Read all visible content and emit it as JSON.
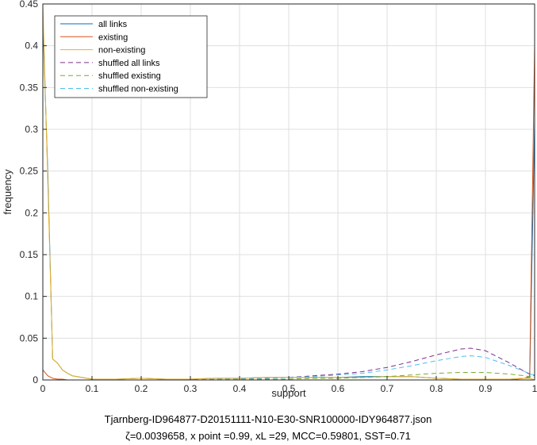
{
  "chart_data": {
    "type": "line",
    "xlabel": "support",
    "ylabel": "frequency",
    "caption_line1": "Tjarnberg-ID964877-D20151111-N10-E30-SNR100000-IDY964877.json",
    "caption_line2": "ζ=0.0039658, x point =0.99, xL =29, MCC=0.59801, SST=0.71",
    "xlim": [
      0,
      1
    ],
    "ylim": [
      0,
      0.45
    ],
    "xticks": [
      0,
      0.1,
      0.2,
      0.3,
      0.4,
      0.5,
      0.6,
      0.7,
      0.8,
      0.9,
      1
    ],
    "xtick_labels": [
      "0",
      "0.1",
      "0.2",
      "0.3",
      "0.4",
      "0.5",
      "0.6",
      "0.7",
      "0.8",
      "0.9",
      "1"
    ],
    "yticks": [
      0,
      0.05,
      0.1,
      0.15,
      0.2,
      0.25,
      0.3,
      0.35,
      0.4,
      0.45
    ],
    "ytick_labels": [
      "0",
      "0.05",
      "0.1",
      "0.15",
      "0.2",
      "0.25",
      "0.3",
      "0.35",
      "0.4",
      "0.45"
    ],
    "grid": true,
    "legend_position": "top-left",
    "x": [
      0,
      0.01,
      0.02,
      0.03,
      0.04,
      0.05,
      0.06,
      0.08,
      0.1,
      0.15,
      0.2,
      0.25,
      0.3,
      0.35,
      0.4,
      0.45,
      0.5,
      0.55,
      0.6,
      0.65,
      0.7,
      0.75,
      0.8,
      0.85,
      0.87,
      0.9,
      0.95,
      0.98,
      0.99,
      1
    ],
    "series": [
      {
        "name": "all links",
        "color": "#0072BD",
        "dash": "solid",
        "values": [
          0.43,
          0.25,
          0.025,
          0.02,
          0.012,
          0.008,
          0.005,
          0.003,
          0.001,
          0.001,
          0.002,
          0.001,
          0.001,
          0.002,
          0.002,
          0.003,
          0.003,
          0.003,
          0.003,
          0.004,
          0.004,
          0.004,
          0.002,
          0.001,
          0.001,
          0.001,
          0.001,
          0.002,
          0.003,
          0.31
        ]
      },
      {
        "name": "existing",
        "color": "#D95319",
        "dash": "solid",
        "values": [
          0.012,
          0.005,
          0.002,
          0.001,
          0.001,
          0,
          0,
          0,
          0,
          0,
          0,
          0,
          0,
          0,
          0,
          0,
          0,
          0,
          0,
          0,
          0,
          0,
          0,
          0,
          0,
          0,
          0,
          0.002,
          0.005,
          0.4
        ]
      },
      {
        "name": "non-existing",
        "color": "#EDB120",
        "dash": "solid",
        "values": [
          0.46,
          0.24,
          0.025,
          0.02,
          0.012,
          0.008,
          0.005,
          0.003,
          0.001,
          0.001,
          0.002,
          0.001,
          0.001,
          0.002,
          0.002,
          0.003,
          0.003,
          0.003,
          0.003,
          0.003,
          0.004,
          0.004,
          0.002,
          0.001,
          0.001,
          0.001,
          0.001,
          0.002,
          0.002,
          0.0
        ]
      },
      {
        "name": "shuffled all links",
        "color": "#7E2F8E",
        "dash": "dashed",
        "values": [
          0,
          0,
          0,
          0,
          0,
          0,
          0,
          0,
          0,
          0,
          0,
          0,
          0,
          0.001,
          0.001,
          0.002,
          0.003,
          0.005,
          0.007,
          0.01,
          0.015,
          0.022,
          0.03,
          0.037,
          0.038,
          0.035,
          0.02,
          0.01,
          0.007,
          0.005
        ]
      },
      {
        "name": "shuffled existing",
        "color": "#77AC30",
        "dash": "dashed",
        "values": [
          0,
          0,
          0,
          0,
          0,
          0,
          0,
          0,
          0,
          0,
          0,
          0,
          0,
          0,
          0,
          0.001,
          0.001,
          0.002,
          0.002,
          0.003,
          0.004,
          0.006,
          0.008,
          0.009,
          0.009,
          0.009,
          0.007,
          0.005,
          0.004,
          0.003
        ]
      },
      {
        "name": "shuffled non-existing",
        "color": "#4DBEEE",
        "dash": "dashed",
        "values": [
          0,
          0,
          0,
          0,
          0,
          0,
          0,
          0,
          0,
          0,
          0,
          0,
          0,
          0.001,
          0.001,
          0.002,
          0.003,
          0.004,
          0.006,
          0.008,
          0.012,
          0.017,
          0.023,
          0.028,
          0.029,
          0.027,
          0.017,
          0.01,
          0.007,
          0.006
        ]
      }
    ]
  }
}
